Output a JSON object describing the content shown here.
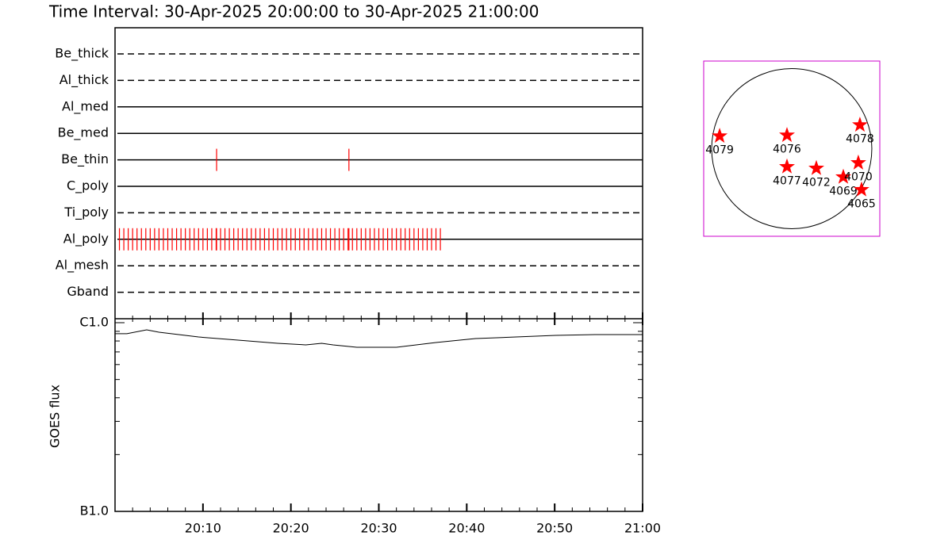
{
  "chart_data": [
    {
      "type": "timeline",
      "title": "Time Interval: 30-Apr-2025 20:00:00 to 30-Apr-2025 21:00:00",
      "categories": [
        "Be_thick",
        "Al_thick",
        "Al_med",
        "Be_med",
        "Be_thin",
        "C_poly",
        "Ti_poly",
        "Al_poly",
        "Al_mesh",
        "Gband"
      ],
      "line_styles": [
        "dashed",
        "dashed",
        "solid",
        "solid",
        "solid",
        "solid",
        "dashed",
        "solid",
        "dashed",
        "dashed"
      ],
      "xlim": [
        0,
        60
      ],
      "event_color": "#ff0000",
      "events": [
        [],
        [],
        [],
        [],
        [
          11.55,
          26.6
        ],
        [],
        [],
        [
          0.5,
          1,
          1.5,
          2,
          2.5,
          3,
          3.5,
          4,
          4.5,
          5,
          5.5,
          6,
          6.5,
          7,
          7.5,
          8,
          8.5,
          9,
          9.5,
          10,
          10.5,
          11,
          11.5,
          11.55,
          12,
          12.5,
          13,
          13.5,
          14,
          14.5,
          15,
          15.5,
          16,
          16.5,
          17,
          17.5,
          18,
          18.5,
          19,
          19.5,
          20,
          20.5,
          21,
          21.5,
          22,
          22.5,
          23,
          23.5,
          24,
          24.5,
          25,
          25.5,
          26,
          26.5,
          26.6,
          27,
          27.5,
          28,
          28.5,
          29,
          29.5,
          30,
          30.5,
          31,
          31.5,
          32,
          32.5,
          33,
          33.5,
          34,
          34.5,
          35,
          35.5,
          36,
          36.5,
          37
        ],
        [],
        []
      ]
    },
    {
      "type": "line",
      "ylabel": "GOES flux",
      "ylog": true,
      "ylim": [
        1e-07,
        1e-06
      ],
      "yticks": [
        {
          "value": 1e-07,
          "label": "B1.0"
        },
        {
          "value": 1e-06,
          "label": "C1.0"
        }
      ],
      "yminorticks": [
        2e-07,
        3e-07,
        4e-07,
        5e-07,
        6e-07,
        7e-07,
        8e-07,
        9e-07
      ],
      "xlim": [
        0,
        60
      ],
      "xticks": [
        {
          "value": 10,
          "label": "20:10"
        },
        {
          "value": 20,
          "label": "20:20"
        },
        {
          "value": 30,
          "label": "20:30"
        },
        {
          "value": 40,
          "label": "20:40"
        },
        {
          "value": 50,
          "label": "20:50"
        },
        {
          "value": 60,
          "label": "21:00"
        }
      ],
      "xminorticks": [
        2,
        4,
        6,
        8,
        12,
        14,
        16,
        18,
        22,
        24,
        26,
        28,
        32,
        34,
        36,
        38,
        42,
        44,
        46,
        48,
        52,
        54,
        56,
        58
      ],
      "color": "#000000",
      "x": [
        0,
        1.35,
        3.6,
        5,
        9.5,
        14,
        18.5,
        21.7,
        23.5,
        24.8,
        27.5,
        32,
        36.5,
        41,
        45.6,
        50.1,
        54.6,
        60
      ],
      "values": [
        8.74e-07,
        8.74e-07,
        9.17e-07,
        8.9e-07,
        8.4e-07,
        8.08e-07,
        7.78e-07,
        7.63e-07,
        7.78e-07,
        7.63e-07,
        7.41e-07,
        7.41e-07,
        7.85e-07,
        8.24e-07,
        8.4e-07,
        8.57e-07,
        8.65e-07,
        8.65e-07
      ]
    },
    {
      "type": "scatter",
      "xlim": [
        -1050,
        1050
      ],
      "ylim": [
        -1050,
        1050
      ],
      "disk_radius": 955,
      "color": "#ff0000",
      "frame_color": "#cc00cc",
      "labels": [
        "4079",
        "4076",
        "4078",
        "4077",
        "4072",
        "4069",
        "4070",
        "4065"
      ],
      "x": [
        -860,
        -57,
        813,
        -57,
        293,
        615,
        794,
        832
      ],
      "values": [
        151,
        161,
        284,
        -217,
        -236,
        -340,
        -170,
        -492
      ]
    }
  ]
}
